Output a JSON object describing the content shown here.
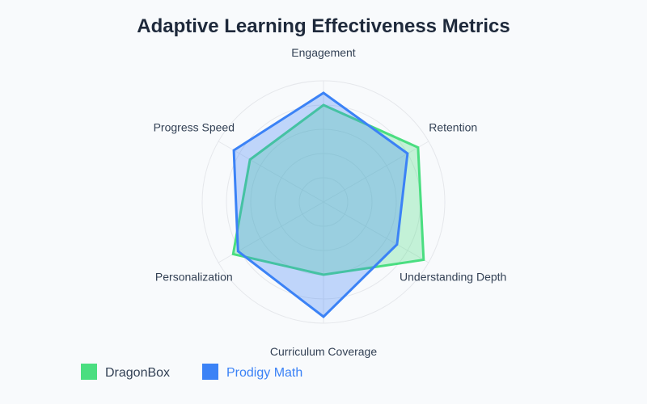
{
  "chart_data": {
    "type": "radar",
    "title": "Adaptive Learning Effectiveness Metrics",
    "axes": [
      "Engagement",
      "Retention",
      "Understanding Depth",
      "Curriculum Coverage",
      "Personalization",
      "Progress Speed"
    ],
    "rmax": 150,
    "gridlines": [
      30,
      60,
      90,
      120,
      150
    ],
    "grid": true,
    "legend_position": "bottom-left",
    "series": [
      {
        "name": "DragonBox",
        "values": [
          120,
          135,
          143,
          90,
          129,
          105
        ],
        "color": "#4ade80"
      },
      {
        "name": "Prodigy Math",
        "values": [
          135,
          120,
          105,
          142,
          122,
          128
        ],
        "color": "#3b82f6"
      }
    ]
  },
  "colors": {
    "grid": "#e5e7eb",
    "text": "#334155",
    "title": "#1e293b",
    "legend_text_1": "#334155",
    "legend_text_2": "#3b82f6"
  }
}
